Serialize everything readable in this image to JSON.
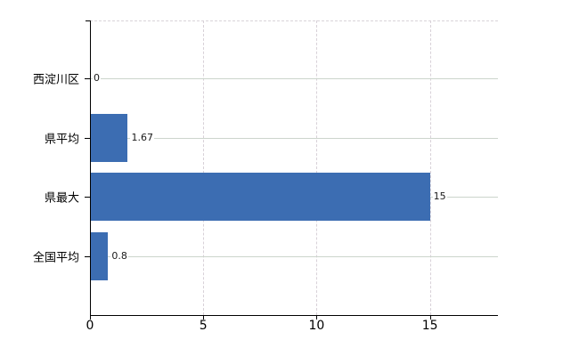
{
  "chart_data": {
    "type": "bar",
    "orientation": "horizontal",
    "title": "",
    "categories": [
      "西淀川区",
      "県平均",
      "県最大",
      "全国平均"
    ],
    "values": [
      0,
      1.67,
      15,
      0.8
    ],
    "value_labels": [
      "0",
      "1.67",
      "15",
      "0.8"
    ],
    "x_ticks": [
      "0",
      "5",
      "10",
      "15"
    ],
    "x_tick_values": [
      0,
      5,
      10,
      15
    ],
    "xlim": [
      0,
      18
    ],
    "ylabel": "",
    "xlabel": "",
    "grid": true,
    "legend_position": "none",
    "colors": {
      "bar": "#3c6db2",
      "axis": "#000000",
      "h_gridline": "#ccd5cc",
      "v_gridline": "#d8d1d8",
      "top_border": "#d9d3d9",
      "background": "#ffffff",
      "tick_label": "#000000",
      "value_label": "#1a1a1a"
    }
  }
}
